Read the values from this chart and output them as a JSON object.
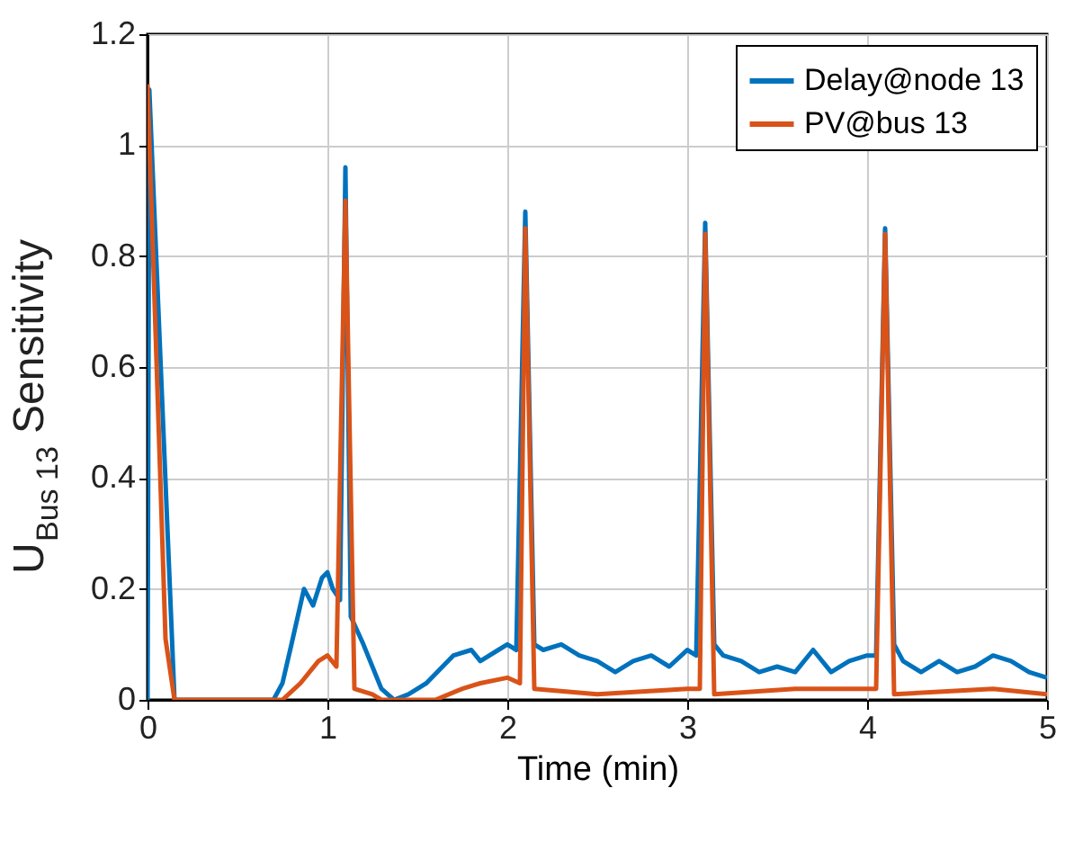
{
  "chart_data": {
    "type": "line",
    "xlabel": "Time (min)",
    "ylabel": "U$_{Bus 13}$ Sensitivity",
    "xlim": [
      0,
      5
    ],
    "ylim": [
      0,
      1.2
    ],
    "xticks": [
      0,
      1,
      2,
      3,
      4,
      5
    ],
    "yticks": [
      0,
      0.2,
      0.4,
      0.6,
      0.8,
      1,
      1.2
    ],
    "grid": true,
    "legend": "top right",
    "line_style": "solid",
    "marker": "none",
    "series": [
      {
        "name": "Delay@node 13",
        "color": "#0072bd",
        "x": [
          0,
          0.01,
          0.15,
          0.7,
          0.75,
          0.8,
          0.87,
          0.92,
          0.97,
          1.0,
          1.03,
          1.07,
          1.1,
          1.13,
          1.2,
          1.3,
          1.37,
          1.45,
          1.55,
          1.7,
          1.8,
          1.85,
          1.95,
          2.0,
          2.05,
          2.1,
          2.15,
          2.2,
          2.3,
          2.4,
          2.5,
          2.6,
          2.7,
          2.8,
          2.9,
          3.0,
          3.05,
          3.1,
          3.15,
          3.2,
          3.3,
          3.4,
          3.5,
          3.6,
          3.7,
          3.8,
          3.9,
          4.0,
          4.05,
          4.1,
          4.15,
          4.2,
          4.3,
          4.4,
          4.5,
          4.6,
          4.7,
          4.8,
          4.9,
          5.0
        ],
        "values": [
          0,
          1.1,
          0,
          0,
          0.03,
          0.1,
          0.2,
          0.17,
          0.22,
          0.23,
          0.2,
          0.18,
          0.96,
          0.15,
          0.1,
          0.02,
          0,
          0.01,
          0.03,
          0.08,
          0.09,
          0.07,
          0.09,
          0.1,
          0.09,
          0.88,
          0.1,
          0.09,
          0.1,
          0.08,
          0.07,
          0.05,
          0.07,
          0.08,
          0.06,
          0.09,
          0.08,
          0.86,
          0.1,
          0.08,
          0.07,
          0.05,
          0.06,
          0.05,
          0.09,
          0.05,
          0.07,
          0.08,
          0.08,
          0.85,
          0.1,
          0.07,
          0.05,
          0.07,
          0.05,
          0.06,
          0.08,
          0.07,
          0.05,
          0.04
        ]
      },
      {
        "name": "PV@bus 13",
        "color": "#d95319",
        "x": [
          0,
          0.1,
          0.15,
          0.75,
          0.85,
          0.95,
          1.0,
          1.05,
          1.1,
          1.15,
          1.25,
          1.3,
          1.6,
          1.75,
          1.85,
          2.0,
          2.07,
          2.1,
          2.15,
          2.5,
          3.0,
          3.07,
          3.1,
          3.15,
          3.6,
          4.05,
          4.1,
          4.15,
          4.7,
          5.0
        ],
        "values": [
          1.11,
          0.11,
          0,
          0,
          0.03,
          0.07,
          0.08,
          0.06,
          0.9,
          0.02,
          0.01,
          0,
          0,
          0.02,
          0.03,
          0.04,
          0.03,
          0.85,
          0.02,
          0.01,
          0.02,
          0.02,
          0.84,
          0.01,
          0.02,
          0.02,
          0.84,
          0.01,
          0.02,
          0.01
        ]
      }
    ]
  }
}
